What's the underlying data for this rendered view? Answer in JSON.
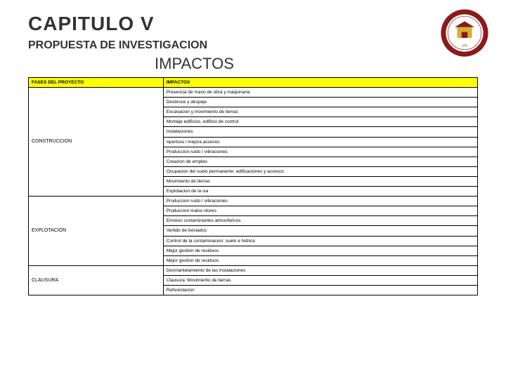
{
  "header": {
    "chapter": "CAPITULO  V",
    "subtitle": "PROPUESTA DE INVESTIGACION",
    "section": "IMPACTOS"
  },
  "logo": {
    "outer_ring_color": "#8b1a1a",
    "inner_bg": "#ffffff",
    "accent": "#d4af37"
  },
  "table": {
    "header_bg": "#ffff00",
    "border_color": "#000000",
    "col1_header": "FASES DEL PROYECTO",
    "col2_header": "IMPACTOS",
    "phases": [
      {
        "name": "CONSTRUCCION",
        "impacts": [
          "Presencia de mano de obra y maquinaria",
          "Desbroce y despeje",
          "Excavacion y movimiento de tierras",
          "Montaje edificios, edificio de control",
          "Instalaciones",
          "Apertura / mejora accesos",
          "Produccion ruido / vibraciones",
          "Creacion de empleo",
          "Ocupacion del suelo permanente: edificaciones y accesos",
          "Movimiento de tierras",
          "Explotacion de la via"
        ]
      },
      {
        "name": "EXPLOTACION",
        "impacts": [
          "Produccion ruido / vibraciones",
          "Produccion malos olores",
          "Emision contaminantes atmosfericos",
          "Vertido de lixiviados",
          "Control de la contaminacion: suelo e hidrica",
          "Mejor gestion de residuos",
          "Mejor gestion de residuos"
        ]
      },
      {
        "name": "CLAUSURA",
        "impacts": [
          "Desmantelamiento de las instalaciones",
          "Clausura: Movimiento de tierras",
          "Reforestacion"
        ]
      }
    ]
  }
}
